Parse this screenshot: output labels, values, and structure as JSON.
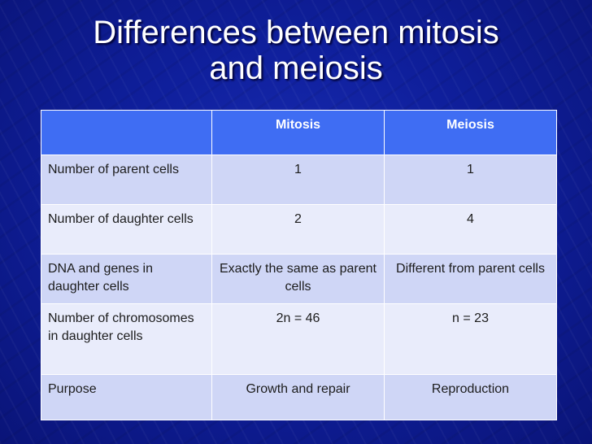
{
  "slide": {
    "title_line1": "Differences between mitosis",
    "title_line2": "and meiosis"
  },
  "table": {
    "headers": [
      "",
      "Mitosis",
      "Meiosis"
    ],
    "rows": [
      [
        "Number of parent cells",
        "1",
        "1"
      ],
      [
        "Number of daughter cells",
        "2",
        "4"
      ],
      [
        "DNA and genes in daughter cells",
        "Exactly the same as parent cells",
        "Different from parent cells"
      ],
      [
        "Number of chromosomes in daughter cells",
        "2n = 46",
        "n = 23"
      ],
      [
        "Purpose",
        "Growth and repair",
        "Reproduction"
      ]
    ]
  },
  "colors": {
    "background": "#0c1a8e",
    "header": "#3f6df3",
    "row_dark": "#cfd6f6",
    "row_light": "#e9ecfb"
  }
}
